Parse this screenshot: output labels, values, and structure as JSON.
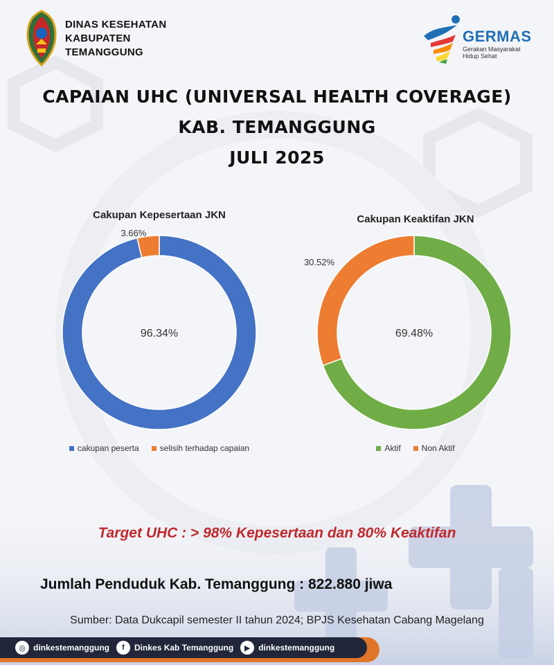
{
  "header": {
    "org_lines": [
      "DINAS KESEHATAN",
      "KABUPATEN",
      "TEMANGGUNG"
    ],
    "germas_name": "GERMAS",
    "germas_tagline": [
      "Gerakan Masyarakat",
      "Hidup Sehat"
    ]
  },
  "title_lines": [
    "CAPAIAN UHC (UNIVERSAL HEALTH COVERAGE)",
    "KAB. TEMANGGUNG",
    "JULI 2025"
  ],
  "chart_data": [
    {
      "type": "pie",
      "variant": "doughnut",
      "title": "Cakupan Kepesertaan JKN",
      "categories": [
        "cakupan peserta",
        "selisih terhadap capaian"
      ],
      "values": [
        96.34,
        3.66
      ],
      "labels": [
        "96.34%",
        "3.66%"
      ],
      "colors": [
        "#4472c4",
        "#ed7d31"
      ],
      "legend": "bottom"
    },
    {
      "type": "pie",
      "variant": "doughnut",
      "title": "Cakupan Keaktifan JKN",
      "categories": [
        "Aktif",
        "Non Aktif"
      ],
      "values": [
        69.48,
        30.52
      ],
      "labels": [
        "69.48%",
        "30.52%"
      ],
      "colors": [
        "#70ad47",
        "#ed7d31"
      ],
      "legend": "bottom"
    }
  ],
  "target_text": "Target UHC :  > 98% Kepesertaan dan 80% Keaktifan",
  "target_color": "#c0282d",
  "population_text": "Jumlah Penduduk Kab. Temanggung : 822.880 jiwa",
  "source_text": "Sumber: Data Dukcapil semester II tahun 2024; BPJS Kesehatan Cabang Magelang",
  "footer": {
    "bar_color": "#21263a",
    "accent_color": "#e0762a",
    "social": [
      {
        "icon": "instagram-icon",
        "label": "dinkestemanggung"
      },
      {
        "icon": "facebook-icon",
        "label": "Dinkes Kab Temanggung"
      },
      {
        "icon": "youtube-icon",
        "label": "dinkestemanggung"
      }
    ]
  }
}
